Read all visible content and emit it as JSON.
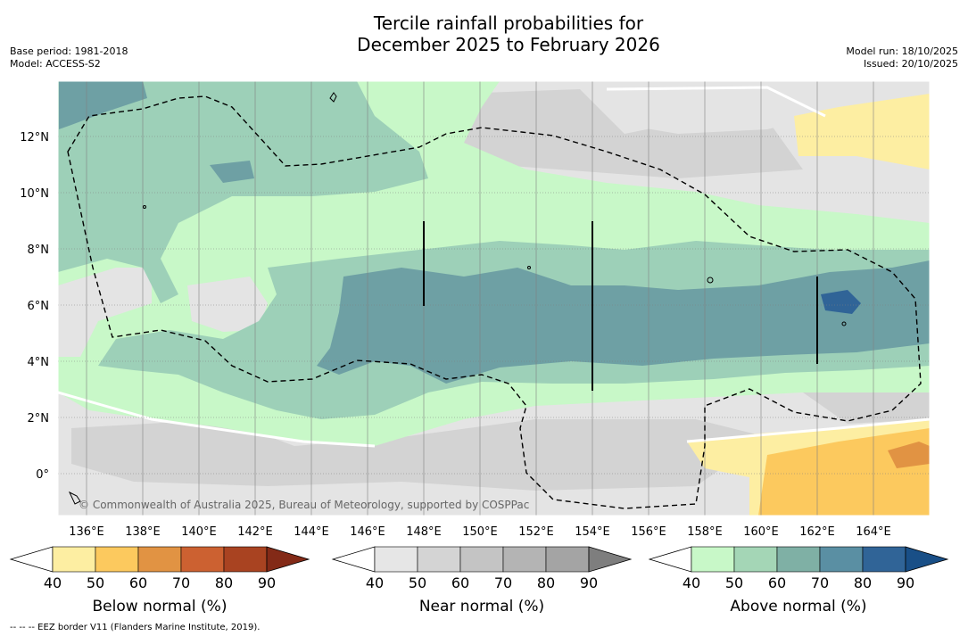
{
  "title": {
    "line1": "Tercile rainfall probabilities for",
    "line2": "December 2025 to February 2026"
  },
  "meta": {
    "base_period": "Base period: 1981-2018",
    "model": "Model: ACCESS-S2",
    "model_run": "Model run: 18/10/2025",
    "issued": "Issued: 20/10/2025"
  },
  "map": {
    "lat_labels": [
      "12°N",
      "10°N",
      "8°N",
      "6°N",
      "4°N",
      "2°N",
      "0°"
    ],
    "lon_labels": [
      "136°E",
      "138°E",
      "140°E",
      "142°E",
      "144°E",
      "146°E",
      "148°E",
      "150°E",
      "152°E",
      "154°E",
      "156°E",
      "158°E",
      "160°E",
      "162°E",
      "164°E"
    ],
    "copyright": "© Commonwealth of Australia 2025, Bureau of Meteorology, supported by COSPPac"
  },
  "colorbars": [
    {
      "title": "Below normal (%)",
      "labels": [
        "40",
        "50",
        "60",
        "70",
        "80",
        "90"
      ],
      "colors": [
        "#ffffff",
        "#fdeea2",
        "#fcc95e",
        "#e19343",
        "#cc6131",
        "#a94321",
        "#832a17"
      ]
    },
    {
      "title": "Near normal (%)",
      "labels": [
        "40",
        "50",
        "60",
        "70",
        "80",
        "90"
      ],
      "colors": [
        "#ffffff",
        "#e6e6e6",
        "#d4d4d4",
        "#c4c4c4",
        "#b4b4b4",
        "#a4a4a4",
        "#7e7e7e"
      ]
    },
    {
      "title": "Above normal (%)",
      "labels": [
        "40",
        "50",
        "60",
        "70",
        "80",
        "90"
      ],
      "colors": [
        "#ffffff",
        "#c8f8c8",
        "#a4d6b6",
        "#7fb0a5",
        "#5a8fa3",
        "#306497",
        "#194f87"
      ]
    }
  ],
  "footnote": "--  --  -- EEZ border V11 (Flanders Marine Institute, 2019).",
  "colors": {
    "dry": "#fdeea2",
    "dry_strong": "#fcc95e",
    "dry_stronger": "#e19343",
    "near_light": "#e4e4e4",
    "near_mid": "#d3d3d3",
    "wet_light": "#c8f8c8",
    "wet_mid": "#9dd0b8",
    "wet_high": "#6ea0a4",
    "wet_higher": "#306497"
  }
}
